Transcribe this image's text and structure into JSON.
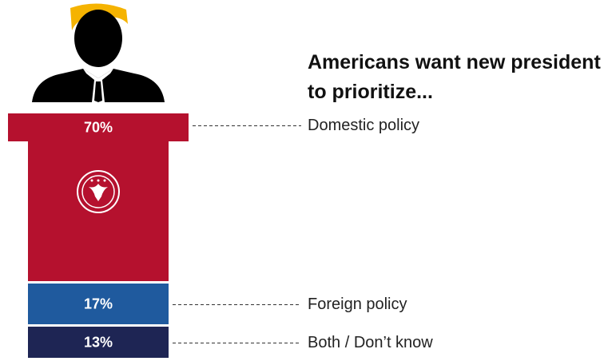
{
  "chart_data": {
    "type": "podium",
    "title": "Americans want new president to prioritize...",
    "categories": [
      "Domestic policy",
      "Foreign policy",
      "Both / Don’t know"
    ],
    "values": [
      70,
      17,
      13
    ],
    "value_labels": [
      "70%",
      "17%",
      "13%"
    ],
    "colors": [
      "#b5112e",
      "#1f5a9e",
      "#1e2554"
    ]
  }
}
